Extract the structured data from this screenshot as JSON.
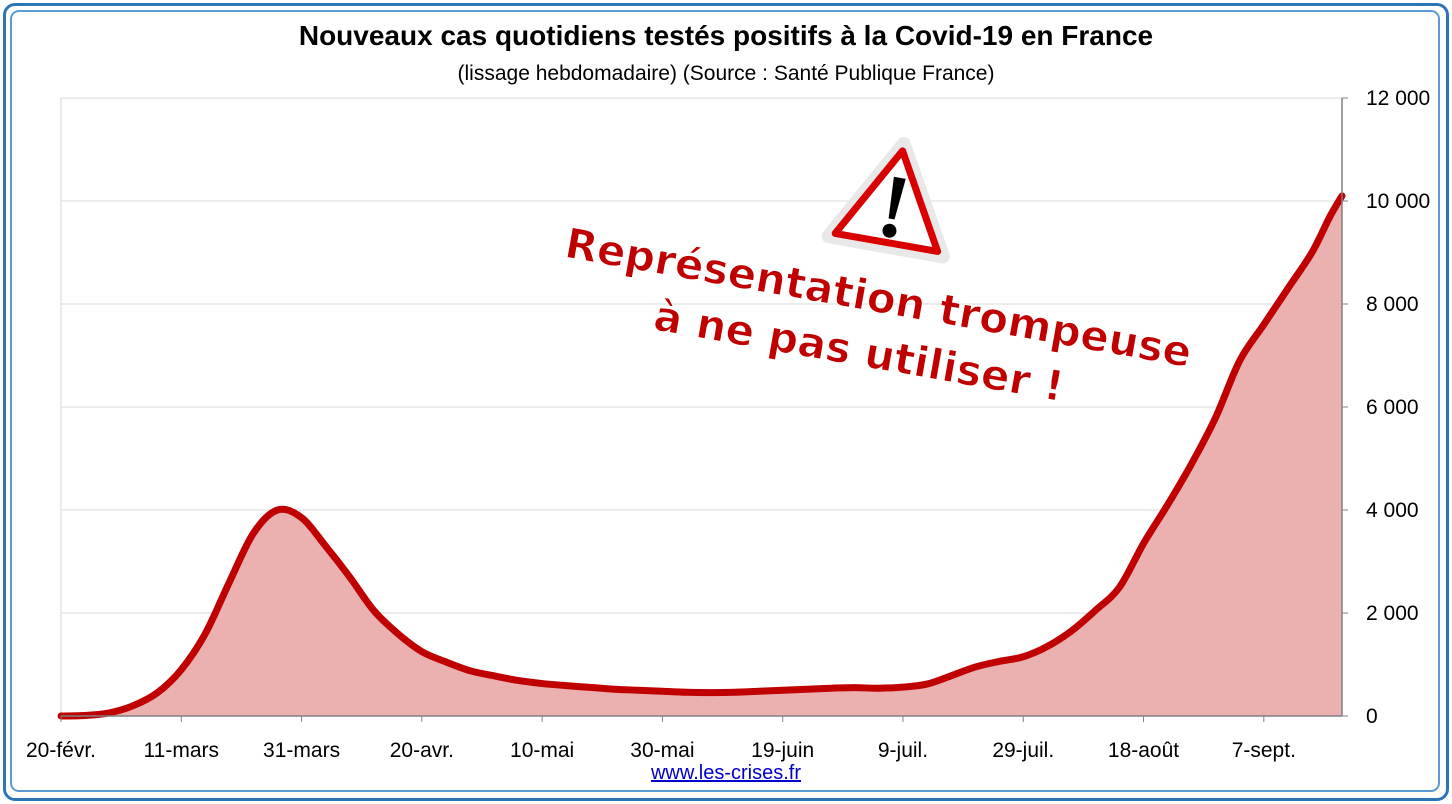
{
  "page": {
    "source_link": "www.les-crises.fr",
    "warning_line1": "Représentation trompeuse",
    "warning_line2": "à ne pas utiliser !",
    "warning_icon": "warning-triangle-icon"
  },
  "colors": {
    "line": "#c00000",
    "fill": "#ebb0b0",
    "frame": "#2e75b6",
    "grid": "#d9d9d9"
  },
  "chart_data": {
    "type": "area",
    "title": "Nouveaux cas quotidiens testés positifs à la Covid-19 en France",
    "subtitle": "(lissage hebdomadaire) (Source : Santé Publique France)",
    "xlabel": "",
    "ylabel": "",
    "y_axis_side": "right",
    "ylim": [
      0,
      12000
    ],
    "yticks": [
      0,
      2000,
      4000,
      6000,
      8000,
      10000,
      12000
    ],
    "ytick_labels": [
      "0",
      "2 000",
      "4 000",
      "6 000",
      "8 000",
      "10 000",
      "12 000"
    ],
    "xlim": [
      0,
      213
    ],
    "xtick_positions": [
      0,
      20,
      40,
      60,
      80,
      100,
      120,
      140,
      160,
      180,
      200
    ],
    "xtick_labels": [
      "20-févr.",
      "11-mars",
      "31-mars",
      "20-avr.",
      "10-mai",
      "30-mai",
      "19-juin",
      "9-juil.",
      "29-juil.",
      "18-août",
      "7-sept."
    ],
    "grid": true,
    "legend": "none",
    "series": [
      {
        "x": [
          0,
          4,
          8,
          12,
          16,
          20,
          24,
          28,
          32,
          36,
          40,
          44,
          48,
          52,
          56,
          60,
          64,
          68,
          72,
          76,
          80,
          84,
          88,
          92,
          96,
          100,
          104,
          108,
          112,
          116,
          120,
          124,
          128,
          132,
          136,
          140,
          144,
          148,
          152,
          156,
          160,
          164,
          168,
          172,
          176,
          180,
          184,
          188,
          192,
          196,
          200,
          204,
          208,
          211,
          213
        ],
        "y": [
          0,
          10,
          60,
          200,
          450,
          900,
          1600,
          2600,
          3550,
          4000,
          3850,
          3300,
          2700,
          2050,
          1600,
          1250,
          1050,
          880,
          780,
          690,
          630,
          590,
          555,
          520,
          500,
          480,
          460,
          455,
          460,
          480,
          500,
          520,
          540,
          550,
          540,
          560,
          620,
          780,
          950,
          1060,
          1150,
          1350,
          1650,
          2050,
          2500,
          3350,
          4100,
          4900,
          5800,
          6900,
          7600,
          8300,
          9000,
          9700,
          10100
        ]
      }
    ]
  }
}
